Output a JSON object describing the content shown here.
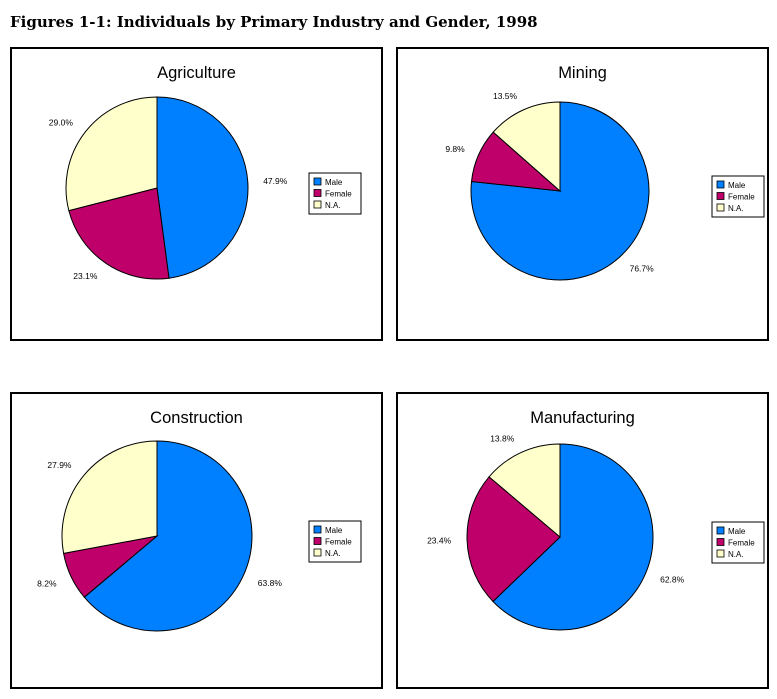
{
  "figure_title": "Figures 1-1:  Individuals by Primary Industry and Gender, 1998",
  "legend_labels": [
    "Male",
    "Female",
    "N.A."
  ],
  "colors": {
    "Male": "#0080ff",
    "Female": "#c0006a",
    "N.A.": "#ffffcc"
  },
  "chart_data": [
    {
      "type": "pie",
      "title": "Agriculture",
      "categories": [
        "Male",
        "Female",
        "N.A."
      ],
      "values": [
        47.9,
        23.1,
        29.0
      ],
      "labels": [
        "47.9%",
        "23.1%",
        "29.0%"
      ],
      "legend": "right"
    },
    {
      "type": "pie",
      "title": "Mining",
      "categories": [
        "Male",
        "Female",
        "N.A."
      ],
      "values": [
        76.7,
        9.8,
        13.5
      ],
      "labels": [
        "76.7%",
        "9.8%",
        "13.5%"
      ],
      "legend": "right"
    },
    {
      "type": "pie",
      "title": "Construction",
      "categories": [
        "Male",
        "Female",
        "N.A."
      ],
      "values": [
        63.8,
        8.2,
        27.9
      ],
      "labels": [
        "63.8%",
        "8.2%",
        "27.9%"
      ],
      "legend": "right"
    },
    {
      "type": "pie",
      "title": "Manufacturing",
      "categories": [
        "Male",
        "Female",
        "N.A."
      ],
      "values": [
        62.8,
        23.4,
        13.8
      ],
      "labels": [
        "62.8%",
        "23.4%",
        "13.8%"
      ],
      "legend": "right"
    }
  ]
}
